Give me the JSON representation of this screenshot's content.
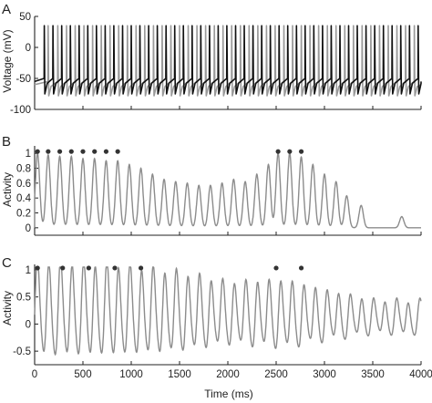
{
  "figure": {
    "xlabel": "Time (ms)",
    "xticks": [
      "0",
      "500",
      "1000",
      "1500",
      "2000",
      "2500",
      "3000",
      "3500",
      "4000"
    ]
  },
  "chart_data": [
    {
      "panel": "A",
      "type": "line",
      "ylabel": "Voltage (mV)",
      "xlim": [
        0,
        4000
      ],
      "ylim": [
        -100,
        50
      ],
      "yticks": [
        "50",
        "0",
        "-50",
        "-100"
      ],
      "ytick_values": [
        50,
        0,
        -50,
        -100
      ],
      "series": [
        {
          "color": "#111111",
          "spike_times": [
            100,
            190,
            280,
            370,
            460,
            550,
            640,
            730,
            820,
            910,
            1000,
            1090,
            1180,
            1270,
            1360,
            1450,
            1540,
            1630,
            1720,
            1810,
            1900,
            1990,
            2080,
            2170,
            2260,
            2350,
            2440,
            2530,
            2620,
            2710,
            2800,
            2890,
            2980,
            3070,
            3160,
            3250,
            3340,
            3430,
            3520,
            3610,
            3700,
            3790,
            3880,
            3970
          ],
          "spike_peak": 35,
          "trough": -75,
          "rest": -55
        },
        {
          "color": "#9a9a9a",
          "spike_times": [
            140,
            240,
            330,
            420,
            510,
            600,
            690,
            780,
            870,
            960,
            1050,
            1140,
            1230,
            1320,
            1410,
            1500,
            1590,
            1680,
            1770,
            1860,
            1950,
            2040,
            2130,
            2220,
            2310,
            2400,
            2490,
            2580,
            2670,
            2760,
            2850,
            2940,
            3030,
            3120,
            3210,
            3300,
            3390,
            3480,
            3570,
            3660,
            3750,
            3840,
            3930
          ],
          "spike_peak": 35,
          "trough": -78,
          "rest": -60
        }
      ]
    },
    {
      "panel": "B",
      "type": "line",
      "ylabel": "Activity",
      "xlim": [
        0,
        4000
      ],
      "ylim": [
        -0.1,
        1.1
      ],
      "yticks": [
        "1",
        "0.8",
        "0.6",
        "0.4",
        "0.2",
        "0"
      ],
      "ytick_values": [
        1,
        0.8,
        0.6,
        0.4,
        0.2,
        0
      ],
      "series": [
        {
          "color": "#8c8c8c",
          "peak_times": [
            30,
            140,
            260,
            380,
            500,
            620,
            740,
            860,
            980,
            1100,
            1220,
            1340,
            1460,
            1580,
            1700,
            1820,
            1940,
            2060,
            2180,
            2300,
            2420,
            2520,
            2640,
            2760,
            2880,
            3000,
            3120,
            3230,
            3380,
            3800
          ],
          "peak_values": [
            1.0,
            0.98,
            0.96,
            0.96,
            0.93,
            0.93,
            0.9,
            0.9,
            0.85,
            0.8,
            0.72,
            0.65,
            0.62,
            0.6,
            0.57,
            0.57,
            0.6,
            0.65,
            0.62,
            0.72,
            0.85,
            1.0,
            1.0,
            0.95,
            0.85,
            0.72,
            0.62,
            0.43,
            0.3,
            0.15
          ]
        }
      ],
      "markers": {
        "color": "#333333",
        "x": [
          30,
          140,
          260,
          380,
          500,
          620,
          740,
          860,
          2520,
          2640,
          2760
        ],
        "y": 1.0
      }
    },
    {
      "panel": "C",
      "type": "line",
      "ylabel": "Activity",
      "xlim": [
        0,
        4000
      ],
      "ylim": [
        -0.75,
        1.1
      ],
      "yticks": [
        "1",
        "0.5",
        "0",
        "-0.5"
      ],
      "ytick_values": [
        1,
        0.5,
        0,
        -0.5
      ],
      "series": [
        {
          "color": "#8c8c8c",
          "period": 120,
          "phase": 30,
          "baseline_start": 0.25,
          "baseline_end": 0.1,
          "amplitude_profile": [
            [
              0,
              0.85
            ],
            [
              900,
              0.8
            ],
            [
              1500,
              0.7
            ],
            [
              2000,
              0.55
            ],
            [
              2600,
              0.6
            ],
            [
              3000,
              0.45
            ],
            [
              3500,
              0.3
            ],
            [
              4000,
              0.3
            ]
          ]
        }
      ],
      "markers": {
        "color": "#333333",
        "x": [
          30,
          290,
          560,
          830,
          1100,
          2500,
          2760
        ],
        "y": 1.0
      }
    }
  ]
}
